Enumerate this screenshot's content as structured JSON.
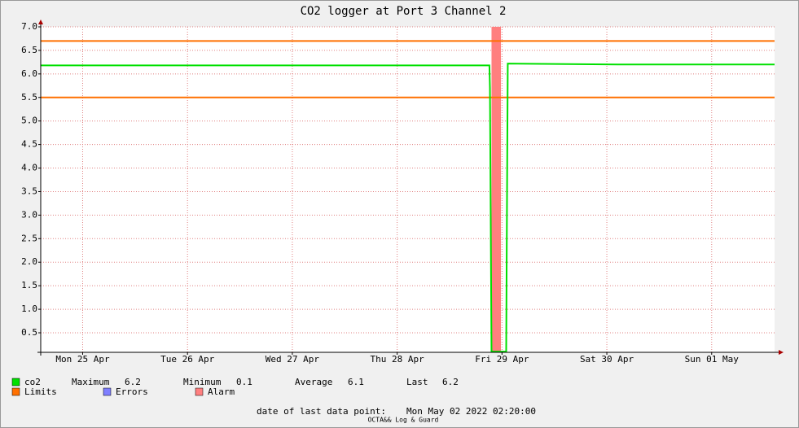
{
  "chart_data": {
    "type": "line",
    "title": "CO2 logger at Port 3 Channel 2",
    "x": [
      0,
      4.28,
      4.285,
      4.3,
      4.44,
      4.445,
      4.455,
      5.5,
      7
    ],
    "series": [
      {
        "name": "co2",
        "color": "#00e000",
        "values": [
          6.18,
          6.18,
          5.7,
          0.1,
          0.1,
          2.2,
          6.22,
          6.2,
          6.2
        ]
      }
    ],
    "limits": {
      "name": "Limits",
      "color": "#ff7000",
      "values": [
        6.7,
        5.5
      ]
    },
    "errors": {
      "name": "Errors",
      "color": "#7f7fff"
    },
    "alarm": {
      "name": "Alarm",
      "color": "#ff7f7f",
      "spans": [
        [
          4.3,
          4.39
        ]
      ]
    },
    "xlim": [
      0,
      7
    ],
    "xticks": [
      {
        "value": 0.4,
        "label": "Mon 25 Apr"
      },
      {
        "value": 1.4,
        "label": "Tue 26 Apr"
      },
      {
        "value": 2.4,
        "label": "Wed 27 Apr"
      },
      {
        "value": 3.4,
        "label": "Thu 28 Apr"
      },
      {
        "value": 4.4,
        "label": "Fri 29 Apr"
      },
      {
        "value": 5.4,
        "label": "Sat 30 Apr"
      },
      {
        "value": 6.4,
        "label": "Sun 01 May"
      }
    ],
    "ylim": [
      0.085,
      7
    ],
    "yticks": [
      0.5,
      {
        "value": 1,
        "label": "1.0"
      },
      1.5,
      {
        "value": 2,
        "label": "2.0"
      },
      2.5,
      {
        "value": 3,
        "label": "3.0"
      },
      3.5,
      {
        "value": 4,
        "label": "4.0"
      },
      4.5,
      {
        "value": 5,
        "label": "5.0"
      },
      5.5,
      {
        "value": 6,
        "label": "6.0"
      },
      6.5,
      {
        "value": 7,
        "label": "7.0"
      }
    ],
    "grid": true,
    "stats": [
      {
        "label": "Maximum",
        "value": 6.2
      },
      {
        "label": "Minimum",
        "value": 0.1
      },
      {
        "label": "Average",
        "value": 6.1
      },
      {
        "label": "Last",
        "value": 6.2
      }
    ],
    "last_data_point": {
      "label": "date of last data point:",
      "value": "Mon May 02 2022 02:20:00"
    },
    "watermark": "OCTA&& Log & Guard"
  }
}
